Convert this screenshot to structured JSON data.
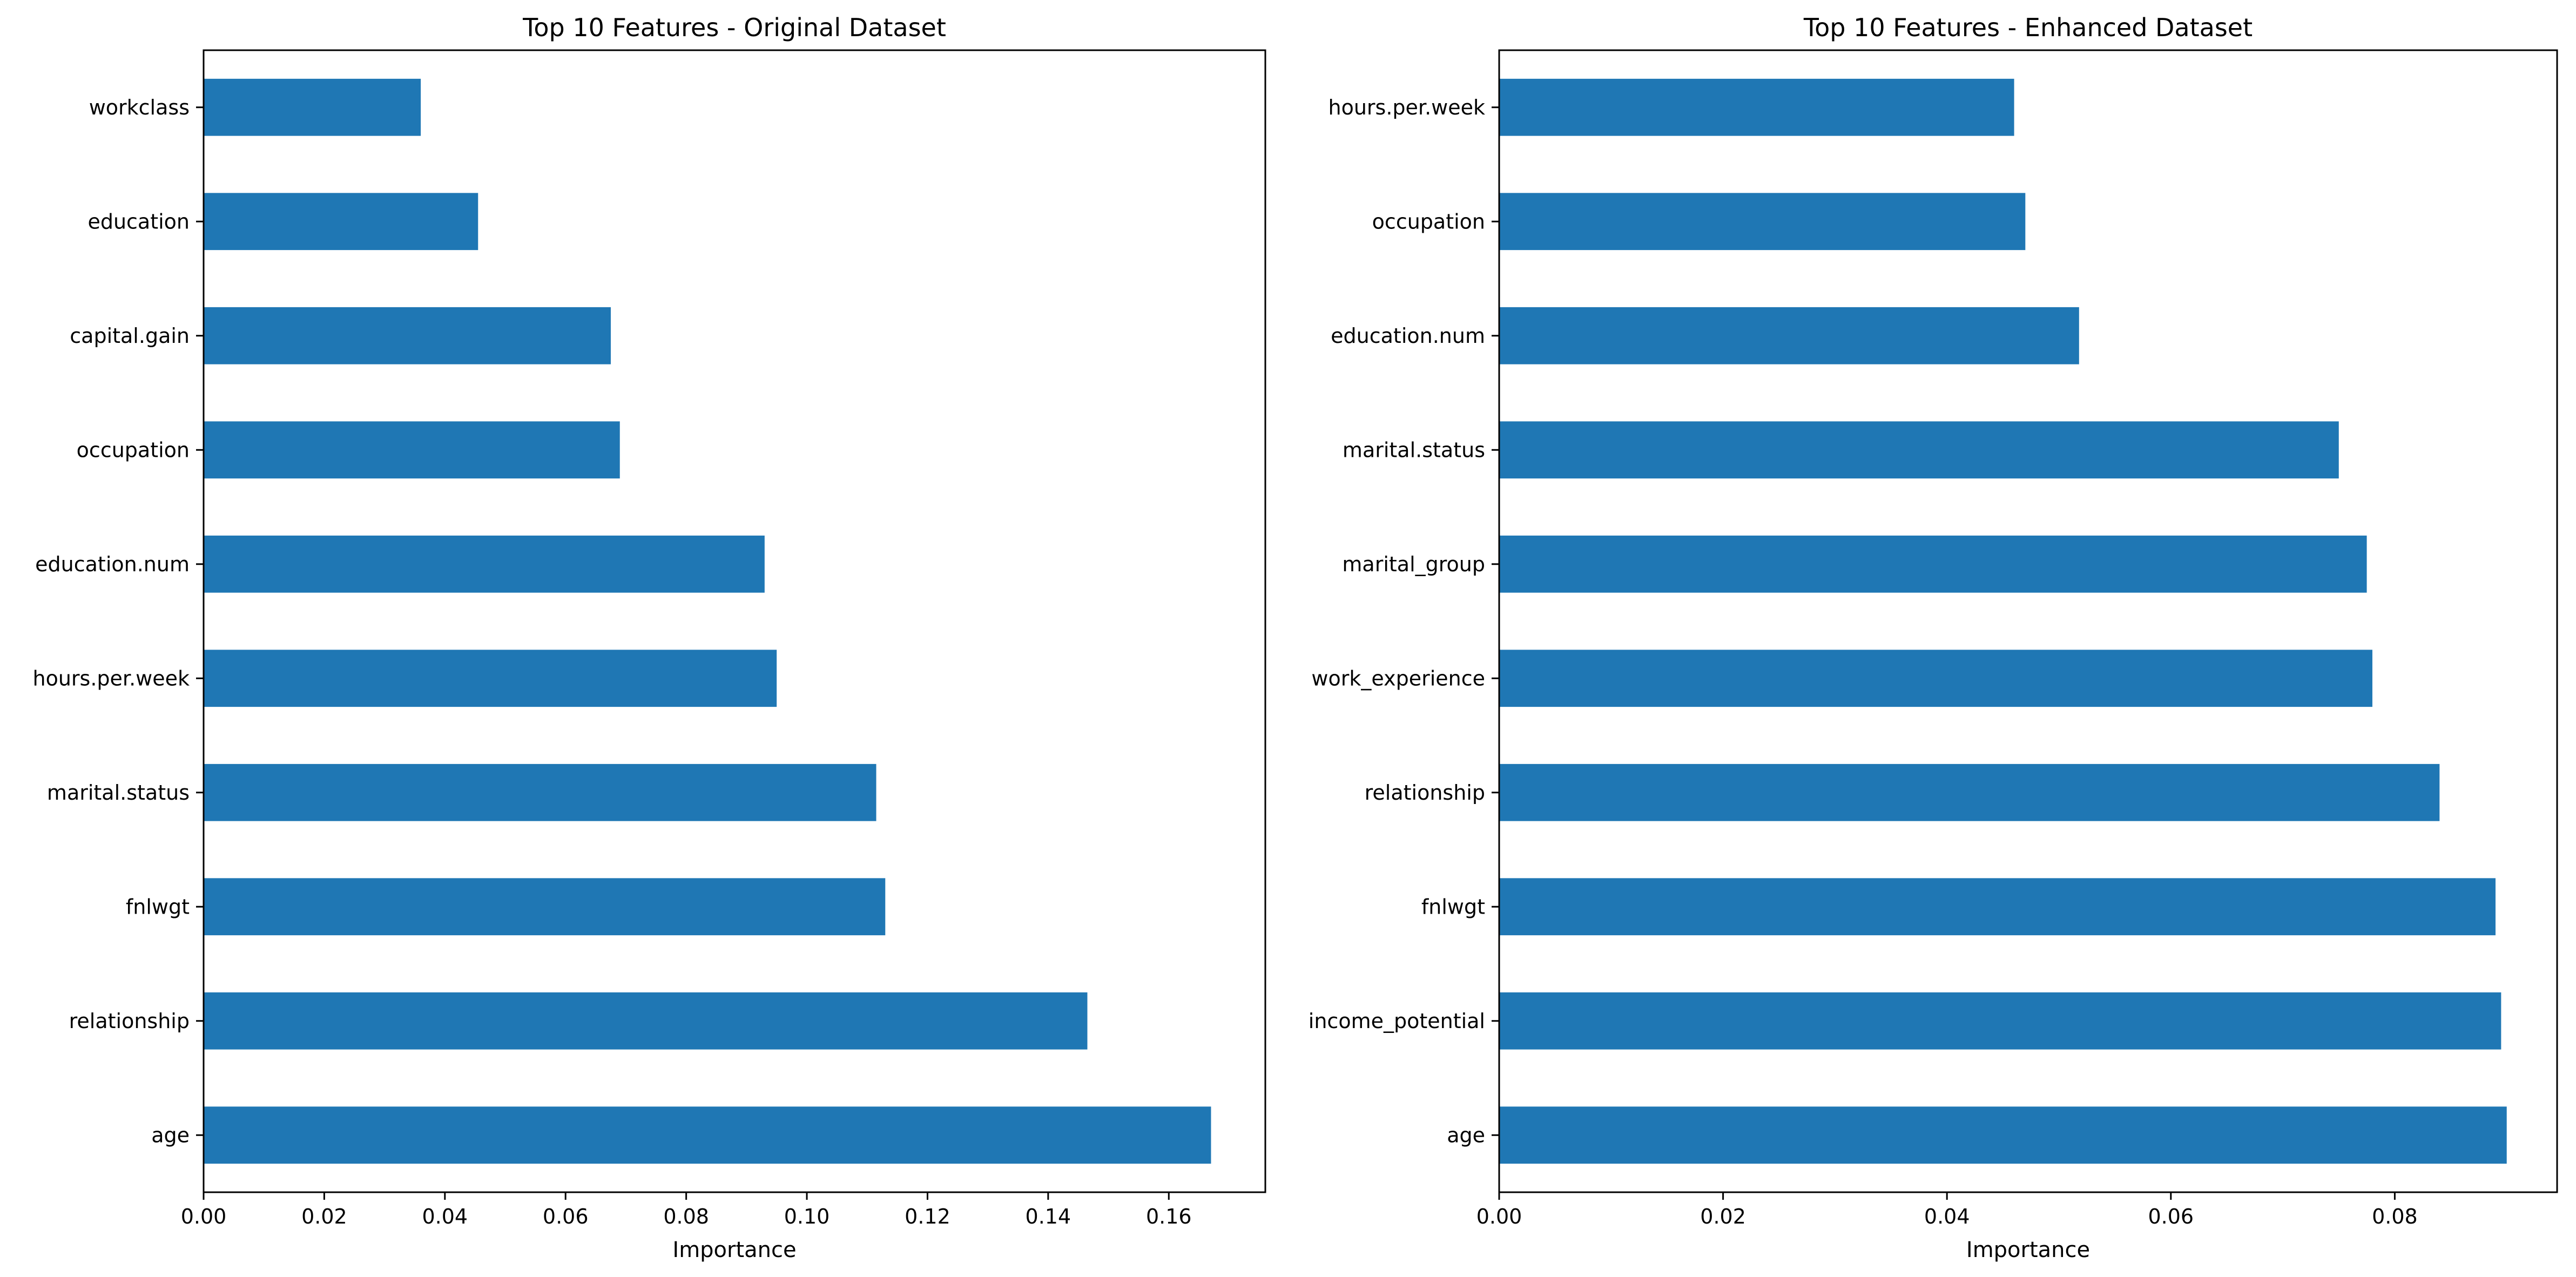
{
  "colors": {
    "bar": "#1f77b4",
    "axis": "#000000",
    "background": "#ffffff"
  },
  "chart_data": [
    {
      "type": "bar",
      "orientation": "horizontal",
      "title": "Top 10 Features - Original Dataset",
      "xlabel": "Importance",
      "ylabel": "",
      "xlim": [
        0,
        0.176
      ],
      "xticks": [
        0.0,
        0.02,
        0.04,
        0.06,
        0.08,
        0.1,
        0.12,
        0.14,
        0.16
      ],
      "xtick_labels": [
        "0.00",
        "0.02",
        "0.04",
        "0.06",
        "0.08",
        "0.10",
        "0.12",
        "0.14",
        "0.16"
      ],
      "grid": false,
      "categories": [
        "age",
        "relationship",
        "fnlwgt",
        "marital.status",
        "hours.per.week",
        "education.num",
        "occupation",
        "capital.gain",
        "education",
        "workclass"
      ],
      "values": [
        0.167,
        0.1465,
        0.113,
        0.1115,
        0.095,
        0.093,
        0.069,
        0.0675,
        0.0455,
        0.036
      ]
    },
    {
      "type": "bar",
      "orientation": "horizontal",
      "title": "Top 10 Features - Enhanced Dataset",
      "xlabel": "Importance",
      "ylabel": "",
      "xlim": [
        0,
        0.0945
      ],
      "xticks": [
        0.0,
        0.02,
        0.04,
        0.06,
        0.08
      ],
      "xtick_labels": [
        "0.00",
        "0.02",
        "0.04",
        "0.06",
        "0.08"
      ],
      "grid": false,
      "categories": [
        "age",
        "income_potential",
        "fnlwgt",
        "relationship",
        "work_experience",
        "marital_group",
        "marital.status",
        "education.num",
        "occupation",
        "hours.per.week"
      ],
      "values": [
        0.09,
        0.0895,
        0.089,
        0.084,
        0.078,
        0.0775,
        0.075,
        0.0518,
        0.047,
        0.046
      ]
    }
  ]
}
